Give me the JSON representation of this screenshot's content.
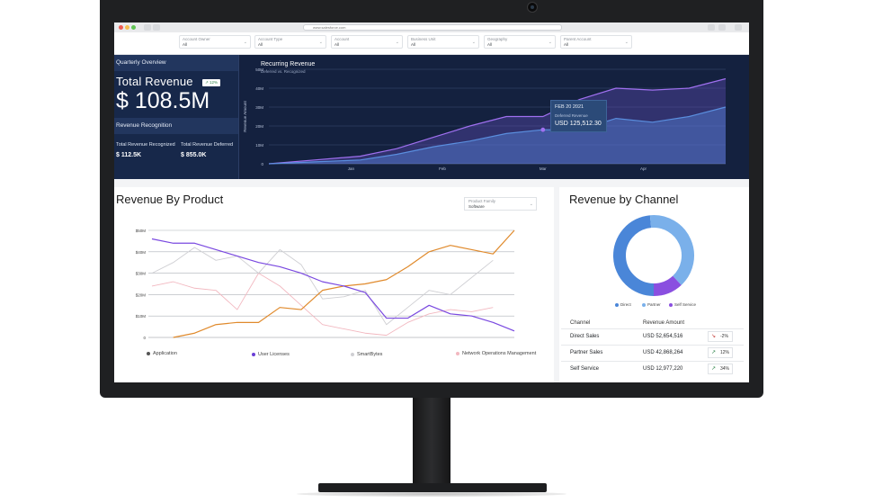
{
  "browser": {
    "url": "www.salesforce.com"
  },
  "filters": [
    {
      "label": "Account Owner",
      "value": "All"
    },
    {
      "label": "Account Type",
      "value": "All"
    },
    {
      "label": "Account",
      "value": "All"
    },
    {
      "label": "Business Unit",
      "value": "All"
    },
    {
      "label": "Geography",
      "value": "All"
    },
    {
      "label": "Parent Account",
      "value": "All"
    }
  ],
  "quarterly": {
    "header": "Quarterly Overview",
    "total_revenue_label": "Total Revenue",
    "badge": "12%",
    "total_revenue_value": "$ 108.5M",
    "recognition_header": "Revenue Recognition",
    "recognized_label": "Total Revenue Recognized",
    "recognized_value": "$ 112.5K",
    "deferred_label": "Total Revenue Deferred",
    "deferred_value": "$ 855.0K"
  },
  "recurring": {
    "title": "Recurring Revenue",
    "subtitle": "Deferred vs. Recognized",
    "tooltip": {
      "date": "FEB 20 2021",
      "label": "Deferred Revenue",
      "value": "USD 125,512.30"
    }
  },
  "product": {
    "title": "Revenue By Product",
    "filter_label": "Product Family",
    "filter_value": "Software"
  },
  "channel": {
    "title": "Revenue by Channel",
    "legend": [
      "Direct",
      "Partner",
      "Self Service"
    ],
    "col_channel": "Channel",
    "col_amount": "Revenue Amount",
    "rows": [
      {
        "channel": "Direct Sales",
        "amount": "USD 52,654,516",
        "change": "-2%",
        "trend": "down"
      },
      {
        "channel": "Partner Sales",
        "amount": "USD 42,868,264",
        "change": "12%",
        "trend": "up"
      },
      {
        "channel": "Self Service",
        "amount": "USD 12,977,220",
        "change": "34%",
        "trend": "up"
      }
    ]
  },
  "colors": {
    "navy": "#14213f",
    "purple": "#8a4fe0",
    "blue": "#5a8ede",
    "orange": "#e08a2c",
    "light_blue": "#7ab0ea",
    "grey_series": "#c8c8cc",
    "pink_series": "#f2b8c0"
  },
  "chart_data": [
    {
      "type": "area",
      "title": "Recurring Revenue",
      "subtitle": "Deferred vs. Recognized",
      "ylabel": "Revenue Amount",
      "categories": [
        "Jan",
        "Feb",
        "Mar",
        "Apr"
      ],
      "ylim": [
        0,
        50
      ],
      "yticks": [
        "0",
        "10M",
        "20M",
        "30M",
        "40M",
        "50M"
      ],
      "x": [
        0,
        0.5,
        1,
        1.4,
        1.8,
        2.2,
        2.6,
        3,
        3.4,
        3.8,
        4.2,
        4.6,
        5
      ],
      "series": [
        {
          "values": [
            0,
            2,
            4,
            8,
            14,
            20,
            25,
            25,
            34,
            40,
            39,
            40,
            45
          ]
        },
        {
          "values": [
            0,
            1,
            2,
            5,
            9,
            12,
            16,
            18,
            18,
            24,
            22,
            25,
            30
          ]
        }
      ]
    },
    {
      "type": "line",
      "title": "Revenue By Product",
      "ylim": [
        0,
        50
      ],
      "yticks": [
        "0",
        "$10M",
        "$20M",
        "$30M",
        "$40M",
        "$50M"
      ],
      "x": [
        0,
        1,
        2,
        3,
        4,
        5,
        6,
        7,
        8,
        9,
        10,
        11,
        12,
        13,
        14,
        15,
        16,
        17
      ],
      "series": [
        {
          "name": "Application",
          "values": [
            null,
            0,
            2,
            6,
            7,
            7,
            14,
            13,
            22,
            24,
            25,
            27,
            33,
            40,
            43,
            41,
            39,
            50
          ]
        },
        {
          "name": "User Licenses",
          "values": [
            46,
            44,
            44,
            41,
            38,
            35,
            33,
            30,
            26,
            24,
            21,
            9,
            9,
            15,
            11,
            10,
            7,
            3
          ]
        },
        {
          "name": "SmartBytes",
          "values": [
            30,
            35,
            42,
            36,
            38,
            30,
            41,
            34,
            18,
            19,
            22,
            6,
            14,
            22,
            20,
            28,
            36,
            null
          ]
        },
        {
          "name": "Network Operations Management",
          "values": [
            24,
            26,
            23,
            22,
            13,
            30,
            24,
            15,
            6,
            4,
            2,
            1,
            7,
            11,
            13,
            12,
            14,
            null
          ]
        }
      ]
    },
    {
      "type": "pie",
      "title": "Revenue by Channel",
      "categories": [
        "Direct",
        "Partner",
        "Self Service"
      ],
      "values": [
        52654516,
        42868264,
        12977220
      ]
    }
  ]
}
